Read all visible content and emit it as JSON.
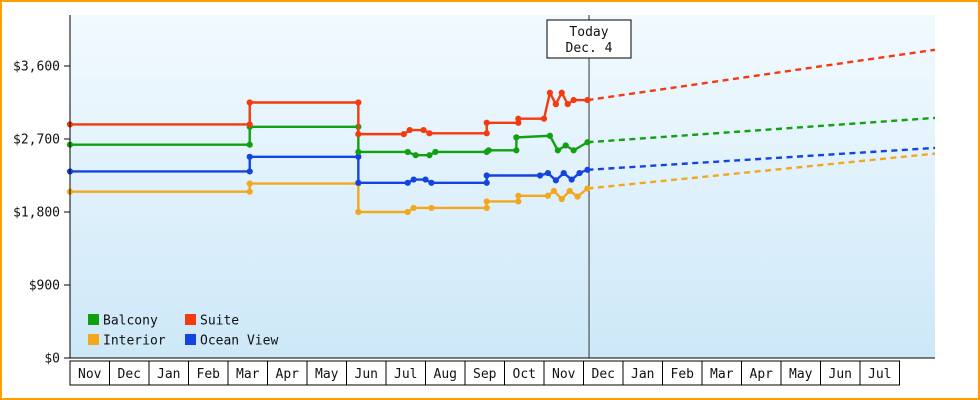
{
  "page": {
    "frame_border_color": "#ffa000"
  },
  "chart_data": {
    "type": "line",
    "today_label_line1": "Today",
    "today_label_line2": "Dec. 4",
    "today_t": 13.14,
    "x_end_t": 21.9,
    "ylim": [
      0,
      4200
    ],
    "plot_bg_top": "#f2faff",
    "plot_bg_bottom": "#cde8f8",
    "y_ticks": [
      {
        "value": 0,
        "label": "$0"
      },
      {
        "value": 900,
        "label": "$900"
      },
      {
        "value": 1800,
        "label": "$1,800"
      },
      {
        "value": 2700,
        "label": "$2,700"
      },
      {
        "value": 3600,
        "label": "$3,600"
      }
    ],
    "months": [
      "Nov",
      "Dec",
      "Jan",
      "Feb",
      "Mar",
      "Apr",
      "May",
      "Jun",
      "Jul",
      "Aug",
      "Sep",
      "Oct",
      "Nov",
      "Dec",
      "Jan",
      "Feb",
      "Mar",
      "Apr",
      "May",
      "Jun",
      "Jul"
    ],
    "series": [
      {
        "name": "Balcony",
        "color": "#10a010",
        "history": [
          [
            0,
            2630
          ],
          [
            4.55,
            2630
          ],
          [
            4.55,
            2850
          ],
          [
            7.3,
            2850
          ],
          [
            7.3,
            2540
          ],
          [
            8.55,
            2540
          ],
          [
            8.75,
            2500
          ],
          [
            9.1,
            2500
          ],
          [
            9.25,
            2540
          ],
          [
            10.55,
            2540
          ],
          [
            10.6,
            2560
          ],
          [
            11.3,
            2560
          ],
          [
            11.3,
            2720
          ],
          [
            12.15,
            2740
          ],
          [
            12.35,
            2560
          ],
          [
            12.55,
            2620
          ],
          [
            12.75,
            2560
          ],
          [
            13.1,
            2660
          ]
        ],
        "forecast_end_price": 2960
      },
      {
        "name": "Suite",
        "color": "#f43a0e",
        "history": [
          [
            0,
            2880
          ],
          [
            4.55,
            2880
          ],
          [
            4.55,
            3150
          ],
          [
            7.3,
            3150
          ],
          [
            7.3,
            2760
          ],
          [
            8.45,
            2760
          ],
          [
            8.6,
            2810
          ],
          [
            8.95,
            2810
          ],
          [
            9.1,
            2770
          ],
          [
            10.55,
            2770
          ],
          [
            10.55,
            2900
          ],
          [
            11.35,
            2900
          ],
          [
            11.35,
            2950
          ],
          [
            12.0,
            2950
          ],
          [
            12.15,
            3270
          ],
          [
            12.3,
            3130
          ],
          [
            12.45,
            3270
          ],
          [
            12.6,
            3130
          ],
          [
            12.75,
            3180
          ],
          [
            13.1,
            3180
          ]
        ],
        "forecast_end_price": 3800
      },
      {
        "name": "Interior",
        "color": "#f2a81d",
        "history": [
          [
            0,
            2050
          ],
          [
            4.55,
            2050
          ],
          [
            4.55,
            2150
          ],
          [
            7.3,
            2150
          ],
          [
            7.3,
            1800
          ],
          [
            8.55,
            1800
          ],
          [
            8.7,
            1850
          ],
          [
            9.15,
            1850
          ],
          [
            10.55,
            1850
          ],
          [
            10.55,
            1930
          ],
          [
            11.35,
            1930
          ],
          [
            11.35,
            2000
          ],
          [
            12.1,
            2000
          ],
          [
            12.25,
            2060
          ],
          [
            12.45,
            1960
          ],
          [
            12.65,
            2060
          ],
          [
            12.85,
            1990
          ],
          [
            13.1,
            2090
          ]
        ],
        "forecast_end_price": 2520
      },
      {
        "name": "Ocean View",
        "color": "#1444e0",
        "history": [
          [
            0,
            2300
          ],
          [
            4.55,
            2300
          ],
          [
            4.55,
            2480
          ],
          [
            7.3,
            2480
          ],
          [
            7.3,
            2160
          ],
          [
            8.55,
            2160
          ],
          [
            8.7,
            2200
          ],
          [
            9.0,
            2200
          ],
          [
            9.15,
            2160
          ],
          [
            10.55,
            2160
          ],
          [
            10.55,
            2250
          ],
          [
            11.9,
            2250
          ],
          [
            12.1,
            2280
          ],
          [
            12.3,
            2190
          ],
          [
            12.5,
            2280
          ],
          [
            12.7,
            2200
          ],
          [
            12.9,
            2280
          ],
          [
            13.1,
            2320
          ]
        ],
        "forecast_end_price": 2590
      }
    ],
    "legend_rows": [
      [
        "Balcony",
        "Suite"
      ],
      [
        "Interior",
        "Ocean View"
      ]
    ]
  }
}
